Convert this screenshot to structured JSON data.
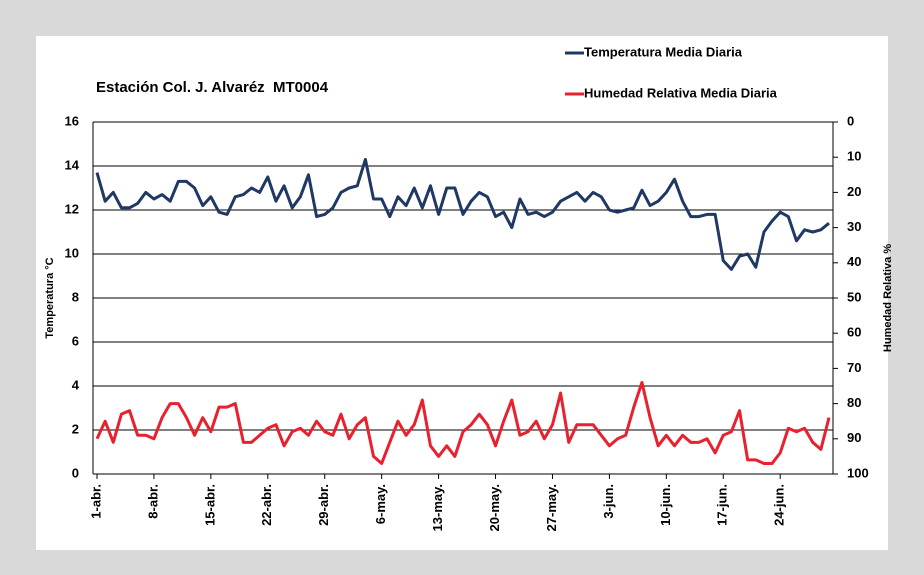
{
  "chart_data": {
    "type": "line",
    "title": "Estación Col. J. Alvaréz  MT0004",
    "y_label": "Temperatura °C",
    "y2_label": "Humedad Relativa %",
    "categories": [
      "1-abr.",
      null,
      null,
      null,
      null,
      null,
      null,
      "8-abr.",
      null,
      null,
      null,
      null,
      null,
      null,
      "15-abr.",
      null,
      null,
      null,
      null,
      null,
      null,
      "22-abr.",
      null,
      null,
      null,
      null,
      null,
      null,
      "29-abr.",
      null,
      null,
      null,
      null,
      null,
      null,
      "6-may.",
      null,
      null,
      null,
      null,
      null,
      null,
      "13-may.",
      null,
      null,
      null,
      null,
      null,
      null,
      "20-may.",
      null,
      null,
      null,
      null,
      null,
      null,
      "27-may.",
      null,
      null,
      null,
      null,
      null,
      null,
      "3-jun.",
      null,
      null,
      null,
      null,
      null,
      null,
      "10-jun.",
      null,
      null,
      null,
      null,
      null,
      null,
      "17-jun.",
      null,
      null,
      null,
      null,
      null,
      null,
      "24-jun.",
      null,
      null,
      null,
      null,
      null,
      null
    ],
    "series": [
      {
        "name": "Temperatura Media Diaria",
        "color": "#1f3864",
        "axis": "y",
        "values": [
          13.7,
          12.4,
          12.8,
          12.1,
          12.1,
          12.3,
          12.8,
          12.5,
          12.7,
          12.4,
          13.3,
          13.3,
          13.0,
          12.2,
          12.6,
          11.9,
          11.8,
          12.6,
          12.7,
          13.0,
          12.8,
          13.5,
          12.4,
          13.1,
          12.1,
          12.6,
          13.6,
          11.7,
          11.8,
          12.1,
          12.8,
          13.0,
          13.1,
          14.3,
          12.5,
          12.5,
          11.7,
          12.6,
          12.2,
          13.0,
          12.1,
          13.1,
          11.8,
          13.0,
          13.0,
          11.8,
          12.4,
          12.8,
          12.6,
          11.7,
          11.9,
          11.2,
          12.5,
          11.8,
          11.9,
          11.7,
          11.9,
          12.4,
          12.6,
          12.8,
          12.4,
          12.8,
          12.6,
          12.0,
          11.9,
          12.0,
          12.1,
          12.9,
          12.2,
          12.4,
          12.8,
          13.4,
          12.4,
          11.7,
          11.7,
          11.8,
          11.8,
          9.7,
          9.3,
          9.9,
          10.0,
          9.4,
          11.0,
          11.5,
          11.9,
          11.7,
          10.6,
          11.1,
          11.0,
          11.1,
          11.4
        ]
      },
      {
        "name": "Humedad Relativa Media Diaria",
        "color": "#e8212e",
        "axis": "y2",
        "values": [
          90,
          85,
          91,
          83,
          82,
          89,
          89,
          90,
          84,
          80,
          80,
          84,
          89,
          84,
          88,
          81,
          81,
          80,
          91,
          91,
          89,
          87,
          86,
          92,
          88,
          87,
          89,
          85,
          88,
          89,
          83,
          90,
          86,
          84,
          95,
          97,
          91,
          85,
          89,
          86,
          79,
          92,
          95,
          92,
          95,
          88,
          86,
          83,
          86,
          92,
          85,
          79,
          89,
          88,
          85,
          90,
          86,
          77,
          91,
          86,
          86,
          86,
          89,
          92,
          90,
          89,
          81,
          74,
          84,
          92,
          89,
          92,
          89,
          91,
          91,
          90,
          94,
          89,
          88,
          82,
          96,
          96,
          97,
          97,
          94,
          87,
          88,
          87,
          91,
          93,
          84
        ]
      }
    ],
    "ylim": [
      0,
      16
    ],
    "yticks": [
      0,
      2,
      4,
      6,
      8,
      10,
      12,
      14,
      16
    ],
    "y2lim": [
      100,
      0
    ],
    "y2ticks": [
      0,
      10,
      20,
      30,
      40,
      50,
      60,
      70,
      80,
      90,
      100
    ],
    "grid": true,
    "legend": "top-right"
  }
}
